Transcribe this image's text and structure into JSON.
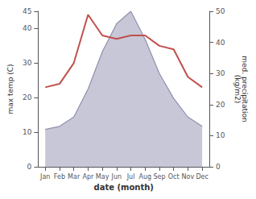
{
  "chart_data": {
    "type": "line",
    "xlabel": "date (month)",
    "ylabel": "max temp (C)",
    "y2label": "med. precipitation\n(kg/m2)",
    "categories": [
      "Jan",
      "Feb",
      "Mar",
      "Apr",
      "May",
      "Jun",
      "Jul",
      "Aug",
      "Sep",
      "Oct",
      "Nov",
      "Dec"
    ],
    "series": [
      {
        "type": "line",
        "color": "#c0504d",
        "values": [
          23,
          24,
          30,
          44,
          38,
          37,
          38,
          38,
          35,
          34,
          26,
          23
        ]
      },
      {
        "type": "area",
        "axis": "y2",
        "color": "#9090b0",
        "values": [
          12,
          13,
          16,
          25,
          37,
          46,
          50,
          41,
          30,
          22,
          16,
          13
        ]
      }
    ],
    "ylim": [
      0,
      45
    ],
    "yticks": [
      0,
      10,
      20,
      30,
      40
    ],
    "y2lim": [
      0,
      50
    ],
    "y2ticks": [
      0,
      10,
      20,
      30,
      40,
      50
    ],
    "grid": false
  }
}
